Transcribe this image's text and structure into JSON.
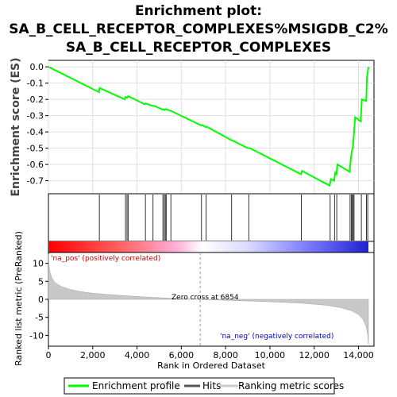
{
  "figure": {
    "title_lines": [
      "Enrichment plot:",
      "SA_B_CELL_RECEPTOR_COMPLEXES%MSIGDB_C2%",
      "SA_B_CELL_RECEPTOR_COMPLEXES"
    ]
  },
  "chart_data": {
    "type": "line",
    "x_range": [
      0,
      14700
    ],
    "es_panel": {
      "ylabel": "Enrichment score (ES)",
      "ylim": [
        -0.78,
        0.04
      ],
      "yticks": [
        0.0,
        -0.1,
        -0.2,
        -0.3,
        -0.4,
        -0.5,
        -0.6,
        -0.7
      ],
      "ytick_labels": [
        "0.0",
        "-0.1",
        "-0.2",
        "-0.3",
        "-0.4",
        "-0.5",
        "-0.6",
        "-0.7"
      ],
      "grid": true,
      "series": [
        {
          "name": "Enrichment profile",
          "color": "#00ff00",
          "x": [
            0,
            2280,
            2310,
            3450,
            3480,
            3550,
            3600,
            4350,
            4400,
            4700,
            4750,
            5150,
            5200,
            5250,
            5300,
            5500,
            5550,
            6900,
            6950,
            7100,
            7150,
            8250,
            8300,
            9000,
            9100,
            11400,
            11450,
            12700,
            12750,
            12900,
            12950,
            13000,
            13050,
            13600,
            13650,
            13700,
            13750,
            13800,
            13850,
            14100,
            14150,
            14350,
            14380,
            14450
          ],
          "y": [
            0.0,
            -0.155,
            -0.13,
            -0.2,
            -0.185,
            -0.19,
            -0.18,
            -0.23,
            -0.225,
            -0.24,
            -0.238,
            -0.262,
            -0.26,
            -0.265,
            -0.26,
            -0.27,
            -0.272,
            -0.36,
            -0.358,
            -0.37,
            -0.368,
            -0.45,
            -0.452,
            -0.5,
            -0.5,
            -0.66,
            -0.64,
            -0.73,
            -0.69,
            -0.7,
            -0.65,
            -0.66,
            -0.6,
            -0.645,
            -0.57,
            -0.52,
            -0.49,
            -0.4,
            -0.31,
            -0.335,
            -0.2,
            -0.21,
            -0.07,
            0.0
          ]
        }
      ]
    },
    "hits": {
      "name": "Hits",
      "x": [
        2300,
        3480,
        3550,
        3600,
        4380,
        4720,
        5170,
        5230,
        5280,
        5320,
        5530,
        6910,
        7120,
        8270,
        9050,
        11420,
        12720,
        12920,
        13020,
        13620,
        13680,
        13720,
        13760,
        13800,
        14130,
        14360,
        14420
      ]
    },
    "colorbar": {
      "pos_color": "#ff0000",
      "neg_color": "#0000ff",
      "mid_color": "#ffffff"
    },
    "metric_panel": {
      "name": "Ranking metric scores",
      "ylabel": "Ranked list metric (PreRanked)",
      "ylim": [
        -13,
        13
      ],
      "yticks": [
        10,
        5,
        0,
        -5,
        -10
      ],
      "ytick_labels": [
        "10",
        "5",
        "0",
        "-5",
        "-10"
      ],
      "fill_color": "#c8c8c8",
      "zero_cross": 6854,
      "curve_x": [
        0,
        20,
        60,
        150,
        300,
        600,
        1000,
        1500,
        2000,
        3000,
        4000,
        5000,
        6000,
        6854,
        7500,
        8500,
        9500,
        10500,
        11500,
        12500,
        13200,
        13700,
        14000,
        14200,
        14350,
        14420,
        14450
      ],
      "curve_y": [
        12.5,
        9.5,
        7.8,
        6.0,
        4.6,
        3.5,
        2.7,
        2.1,
        1.7,
        1.2,
        0.8,
        0.45,
        0.18,
        0.0,
        -0.15,
        -0.35,
        -0.55,
        -0.8,
        -1.1,
        -1.6,
        -2.3,
        -3.2,
        -4.2,
        -5.5,
        -7.5,
        -10.0,
        -12.5
      ]
    },
    "xlabel": "Rank in Ordered Dataset",
    "xticks": [
      0,
      2000,
      4000,
      6000,
      8000,
      10000,
      12000,
      14000
    ],
    "xtick_labels": [
      "0",
      "2,000",
      "4,000",
      "6,000",
      "8,000",
      "10,000",
      "12,000",
      "14,000"
    ],
    "annotations": {
      "pos": "'na_pos' (positively correlated)",
      "neg": "'na_neg' (negatively correlated)",
      "zero": "Zero cross at 6854"
    },
    "legend": {
      "position": "bottom",
      "items": [
        "Enrichment profile",
        "Hits",
        "Ranking metric scores"
      ]
    }
  }
}
